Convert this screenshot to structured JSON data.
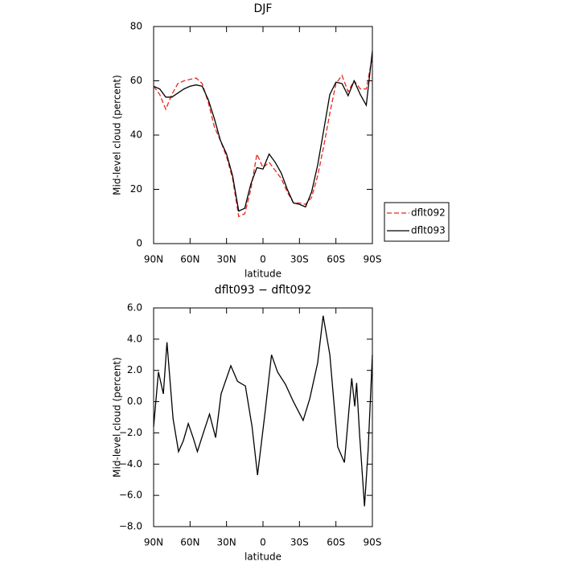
{
  "chart_data": [
    {
      "type": "line",
      "title": "DJF",
      "x_label": "latitude",
      "y_label": "Mid-level cloud (percent)",
      "xlim": [
        90,
        -90
      ],
      "xticks": [
        {
          "value": 90,
          "label": "90N"
        },
        {
          "value": 60,
          "label": "60N"
        },
        {
          "value": 30,
          "label": "30N"
        },
        0,
        {
          "value": -30,
          "label": "30S"
        },
        {
          "value": -60,
          "label": "60S"
        },
        {
          "value": -90,
          "label": "90S"
        }
      ],
      "ylim": [
        0,
        80
      ],
      "yticks": [
        0,
        20,
        40,
        60,
        80
      ],
      "legend": "right",
      "x": [
        90,
        85,
        80,
        75,
        70,
        65,
        60,
        55,
        50,
        45,
        40,
        35,
        30,
        25,
        20,
        15,
        10,
        5,
        0,
        -5,
        -10,
        -15,
        -20,
        -25,
        -30,
        -35,
        -40,
        -45,
        -50,
        -55,
        -60,
        -65,
        -70,
        -75,
        -80,
        -85,
        -90
      ],
      "series": [
        {
          "name": "dflt092",
          "color": "#e8261e",
          "dash": true,
          "values": [
            58,
            55,
            49.5,
            55,
            59,
            60,
            60.5,
            61,
            59,
            52,
            43,
            38,
            32,
            24,
            10,
            11,
            20,
            33,
            28,
            30,
            27,
            24,
            19,
            15,
            15,
            14.5,
            17,
            25,
            36,
            48,
            59,
            62,
            56,
            60,
            57,
            57,
            69
          ]
        },
        {
          "name": "dflt093",
          "color": "#000000",
          "dash": false,
          "values": [
            58,
            57,
            54,
            54,
            55.5,
            57,
            58,
            58.5,
            58,
            53,
            46,
            38,
            33,
            25,
            12,
            13,
            22,
            28,
            27.5,
            33,
            30,
            26,
            20,
            15,
            14.5,
            13.5,
            19,
            29,
            42,
            55,
            59.5,
            59,
            54.5,
            60,
            55,
            51,
            71
          ]
        }
      ]
    },
    {
      "type": "line",
      "title": "dflt093 − dflt092",
      "x_label": "latitude",
      "y_label": "Mid-level cloud (percent)",
      "xlim": [
        90,
        -90
      ],
      "xticks": [
        {
          "value": 90,
          "label": "90N"
        },
        {
          "value": 60,
          "label": "60N"
        },
        {
          "value": 30,
          "label": "30N"
        },
        0,
        {
          "value": -30,
          "label": "30S"
        },
        {
          "value": -60,
          "label": "60S"
        },
        {
          "value": -90,
          "label": "90S"
        }
      ],
      "ylim": [
        -8,
        6
      ],
      "yticks": [
        {
          "value": -8,
          "label": "−8.0"
        },
        {
          "value": -6,
          "label": "−6.0"
        },
        {
          "value": -4,
          "label": "−4.0"
        },
        {
          "value": -2,
          "label": "−2.0"
        },
        {
          "value": 0,
          "label": "0.0"
        },
        {
          "value": 2,
          "label": "2.0"
        },
        {
          "value": 4,
          "label": "4.0"
        },
        {
          "value": 6,
          "label": "6.0"
        }
      ],
      "x": [
        90,
        86,
        82,
        79,
        74,
        69.5,
        65.5,
        61.5,
        57.5,
        54,
        49.5,
        44,
        39,
        34.5,
        26.5,
        21,
        14.5,
        9,
        4.5,
        -2,
        -7,
        -12,
        -18.5,
        -25,
        -33,
        -38.5,
        -45,
        -49.5,
        -55,
        -61.5,
        -67,
        -73,
        -75.5,
        -77,
        -79.5,
        -83.5,
        -86.5,
        -90
      ],
      "series": [
        {
          "color": "#000000",
          "values": [
            -1.6,
            1.9,
            0.5,
            3.8,
            -1.1,
            -3.2,
            -2.5,
            -1.4,
            -2.3,
            -3.2,
            -2.1,
            -0.8,
            -2.3,
            0.5,
            2.3,
            1.3,
            1.0,
            -1.6,
            -4.7,
            -0.5,
            3.0,
            1.9,
            1.1,
            0.0,
            -1.2,
            0.2,
            2.5,
            5.5,
            3.0,
            -2.9,
            -3.9,
            1.5,
            -0.3,
            1.2,
            -2.1,
            -6.7,
            -3.1,
            3.0
          ]
        }
      ]
    }
  ]
}
